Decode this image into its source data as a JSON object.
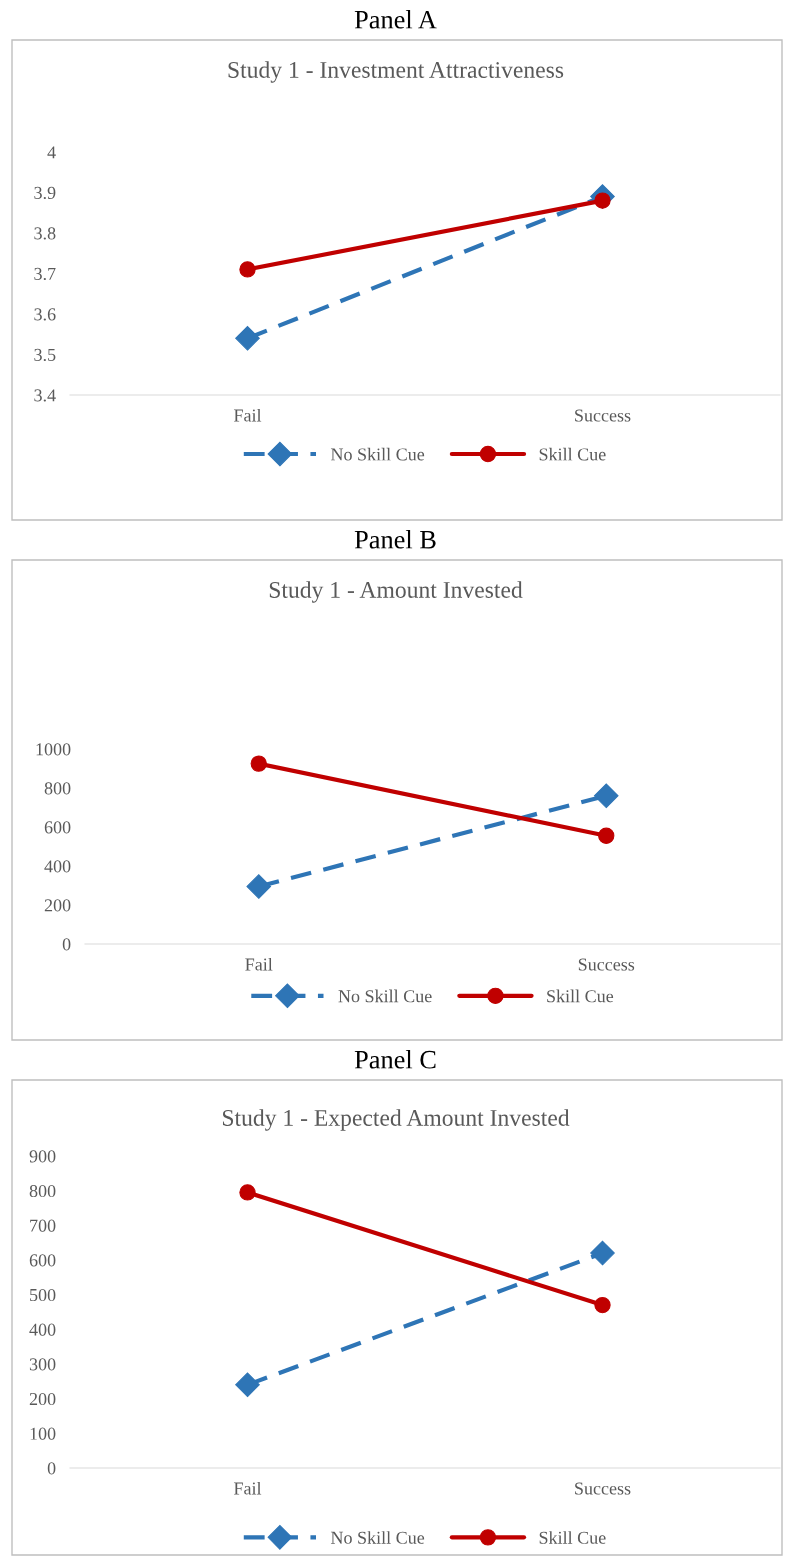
{
  "chart_data": [
    {
      "type": "line",
      "title": "Panel A",
      "subtitle": "Study 1 - Investment Attractiveness",
      "categories": [
        "Fail",
        "Success"
      ],
      "ylim": [
        3.4,
        4
      ],
      "yticks": [
        3.4,
        3.5,
        3.6,
        3.7,
        3.8,
        3.9,
        4
      ],
      "grid": false,
      "legend": "bottom",
      "series": [
        {
          "name": "No Skill Cue",
          "color": "#2e75b6",
          "values": [
            3.54,
            3.89
          ],
          "marker": "diamond",
          "line_style": "dashed"
        },
        {
          "name": "Skill Cue",
          "color": "#c00000",
          "values": [
            3.71,
            3.88
          ],
          "marker": "circle",
          "line_style": "solid"
        }
      ]
    },
    {
      "type": "line",
      "title": "Panel B",
      "subtitle": "Study 1 - Amount Invested",
      "categories": [
        "Fail",
        "Success"
      ],
      "ylim": [
        0,
        1000
      ],
      "yticks": [
        0,
        200,
        400,
        600,
        800,
        1000
      ],
      "grid": false,
      "legend": "bottom",
      "series": [
        {
          "name": "No Skill Cue",
          "color": "#2e75b6",
          "values": [
            295,
            760
          ],
          "marker": "diamond",
          "line_style": "dashed"
        },
        {
          "name": "Skill Cue",
          "color": "#c00000",
          "values": [
            925,
            555
          ],
          "marker": "circle",
          "line_style": "solid"
        }
      ]
    },
    {
      "type": "line",
      "title": "Panel C",
      "subtitle": "Study 1 - Expected Amount Invested",
      "categories": [
        "Fail",
        "Success"
      ],
      "ylim": [
        0,
        900
      ],
      "yticks": [
        0,
        100,
        200,
        300,
        400,
        500,
        600,
        700,
        800,
        900
      ],
      "grid": false,
      "legend": "bottom",
      "series": [
        {
          "name": "No Skill Cue",
          "color": "#2e75b6",
          "values": [
            240,
            620
          ],
          "marker": "diamond",
          "line_style": "dashed"
        },
        {
          "name": "Skill Cue",
          "color": "#c00000",
          "values": [
            795,
            470
          ],
          "marker": "circle",
          "line_style": "solid"
        }
      ]
    }
  ]
}
